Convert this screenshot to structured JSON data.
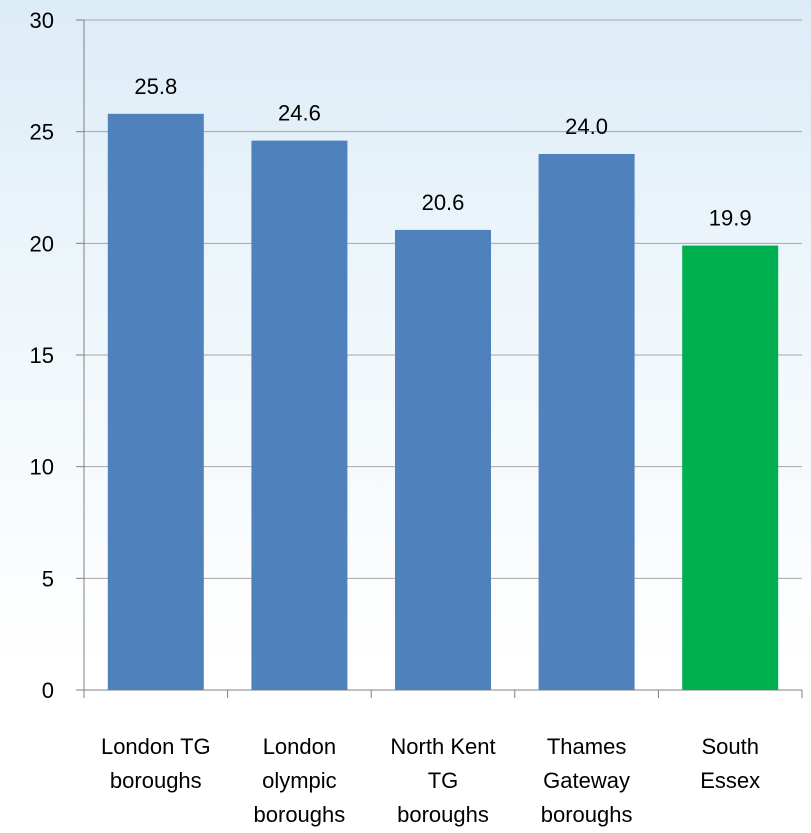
{
  "chart_data": {
    "type": "bar",
    "title": "",
    "xlabel": "",
    "ylabel": "",
    "categories": [
      [
        "London TG",
        "boroughs"
      ],
      [
        "London",
        "olympic",
        "boroughs"
      ],
      [
        "North Kent",
        "TG",
        "boroughs"
      ],
      [
        "Thames",
        "Gateway",
        "boroughs"
      ],
      [
        "South",
        "Essex"
      ]
    ],
    "values": [
      25.8,
      24.6,
      20.6,
      24.0,
      19.9
    ],
    "value_labels": [
      "25.8",
      "24.6",
      "20.6",
      "24.0",
      "19.9"
    ],
    "bar_colors": [
      "#4f81bd",
      "#4f81bd",
      "#4f81bd",
      "#4f81bd",
      "#00b050"
    ],
    "ylim": [
      0,
      30
    ],
    "yticks": [
      0,
      5,
      10,
      15,
      20,
      25,
      30
    ],
    "grid": true,
    "legend": "none"
  }
}
